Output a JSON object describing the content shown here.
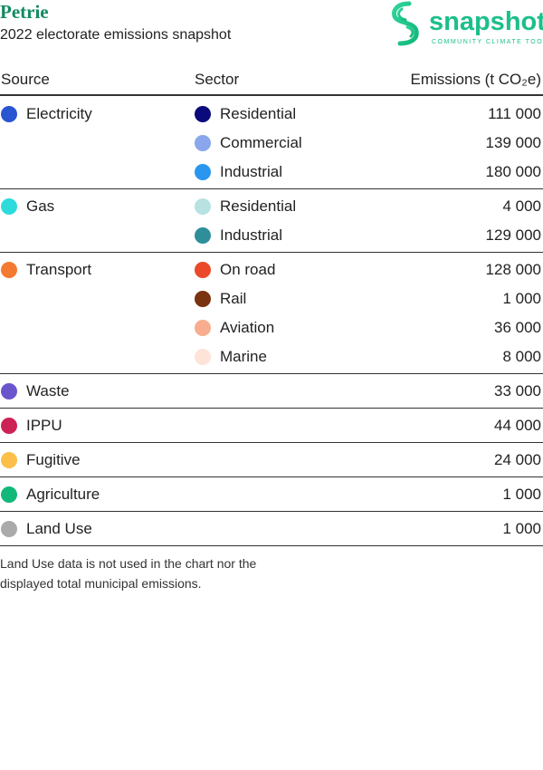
{
  "header": {
    "title": "Petrie",
    "subtitle": "2022 electorate emissions snapshot",
    "logo": {
      "name": "snapshot",
      "tagline": "COMMUNITY CLIMATE TOOL"
    }
  },
  "table": {
    "columns": [
      "Source",
      "Sector",
      "Emissions (t CO₂e)"
    ],
    "groups": [
      {
        "source": "Electricity",
        "color": "#2a55d0",
        "rows": [
          {
            "sector": "Residential",
            "color": "#0a0a7a",
            "value": "111 000"
          },
          {
            "sector": "Commercial",
            "color": "#8aa6ec",
            "value": "139 000"
          },
          {
            "sector": "Industrial",
            "color": "#2a96f0",
            "value": "180 000"
          }
        ]
      },
      {
        "source": "Gas",
        "color": "#2edbdb",
        "rows": [
          {
            "sector": "Residential",
            "color": "#b8e2e2",
            "value": "4 000"
          },
          {
            "sector": "Industrial",
            "color": "#2e8f9a",
            "value": "129 000"
          }
        ]
      },
      {
        "source": "Transport",
        "color": "#f47a32",
        "rows": [
          {
            "sector": "On road",
            "color": "#ea4a2a",
            "value": "128 000"
          },
          {
            "sector": "Rail",
            "color": "#7a3210",
            "value": "1 000"
          },
          {
            "sector": "Aviation",
            "color": "#f7ad8e",
            "value": "36 000"
          },
          {
            "sector": "Marine",
            "color": "#fde3d8",
            "value": "8 000"
          }
        ]
      },
      {
        "source": "Waste",
        "color": "#6a55cc",
        "rows": [
          {
            "value": "33 000"
          }
        ]
      },
      {
        "source": "IPPU",
        "color": "#cc2255",
        "rows": [
          {
            "value": "44 000"
          }
        ]
      },
      {
        "source": "Fugitive",
        "color": "#fcbf4a",
        "rows": [
          {
            "value": "24 000"
          }
        ]
      },
      {
        "source": "Agriculture",
        "color": "#12b87a",
        "rows": [
          {
            "value": "1 000"
          }
        ]
      },
      {
        "source": "Land Use",
        "color": "#aaaaaa",
        "rows": [
          {
            "value": "1 000"
          }
        ]
      }
    ]
  },
  "note": [
    "Land Use data is not used in the chart nor the",
    "displayed total municipal emissions."
  ]
}
